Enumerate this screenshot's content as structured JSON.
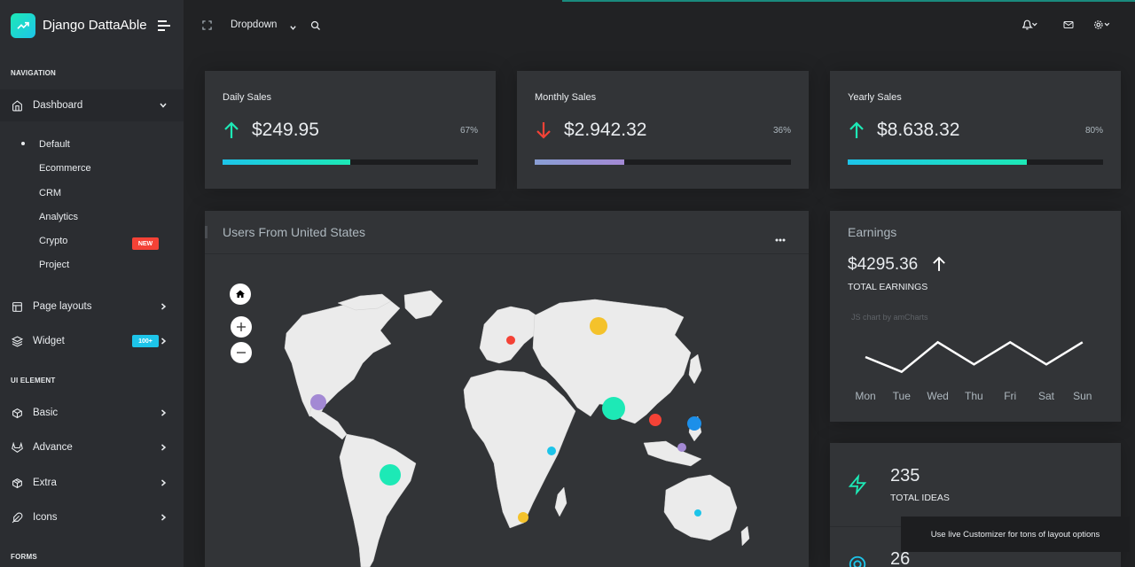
{
  "brand": {
    "name": "Django DattaAble",
    "logo_icon": "trending-up-icon"
  },
  "sidebar": {
    "captions": {
      "navigation": "NAVIGATION",
      "ui_element": "UI ELEMENT",
      "forms": "FORMS"
    },
    "dashboard": {
      "label": "Dashboard",
      "icon": "home-icon",
      "subitems": [
        "Default",
        "Ecommerce",
        "CRM",
        "Analytics",
        "Crypto",
        "Project"
      ],
      "crypto_badge": "NEW"
    },
    "items": [
      {
        "label": "Page layouts",
        "icon": "layout-icon"
      },
      {
        "label": "Widget",
        "icon": "layers-icon",
        "badge": "100+"
      },
      {
        "label": "Basic",
        "icon": "box-icon"
      },
      {
        "label": "Advance",
        "icon": "gitlab-icon"
      },
      {
        "label": "Extra",
        "icon": "package-icon"
      },
      {
        "label": "Icons",
        "icon": "feather-icon"
      }
    ]
  },
  "header": {
    "dropdown_label": "Dropdown"
  },
  "stats": [
    {
      "title": "Daily Sales",
      "value": "$249.95",
      "percent": "67%",
      "fill": 0.5,
      "trend": "up",
      "bar_color": "#1de9b6"
    },
    {
      "title": "Monthly Sales",
      "value": "$2.942.32",
      "percent": "36%",
      "fill": 0.35,
      "trend": "down",
      "bar_color": "#a389d4"
    },
    {
      "title": "Yearly Sales",
      "value": "$8.638.32",
      "percent": "80%",
      "fill": 0.7,
      "trend": "up",
      "bar_color": "#1de9b6"
    }
  ],
  "map": {
    "title": "Users From United States"
  },
  "earnings": {
    "title": "Earnings",
    "value": "$4295.36",
    "caption": "TOTAL EARNINGS",
    "credit": "JS chart by amCharts",
    "chart_data": {
      "type": "line",
      "categories": [
        "Mon",
        "Tue",
        "Wed",
        "Thu",
        "Fri",
        "Sat",
        "Sun"
      ],
      "values": [
        60,
        40,
        80,
        50,
        80,
        50,
        80
      ]
    }
  },
  "ideas": [
    {
      "number": "235",
      "label": "TOTAL IDEAS"
    },
    {
      "number": "26",
      "label": ""
    }
  ],
  "toast": "Use live Customizer for tons of layout options"
}
